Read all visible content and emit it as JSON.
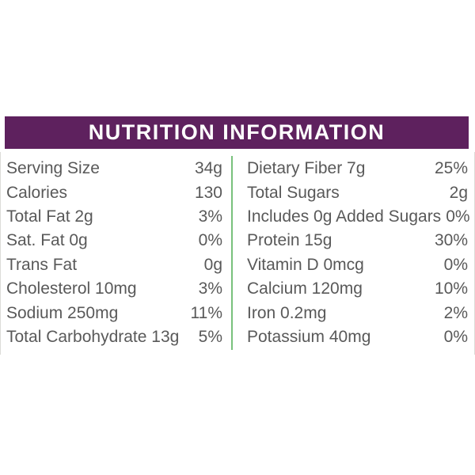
{
  "header": {
    "title": "NUTRITION INFORMATION"
  },
  "colors": {
    "header_bg": "#5e215e",
    "header_text": "#ffffff",
    "divider_green": "#79c17c",
    "row_text": "#595959"
  },
  "left_rows": [
    {
      "label": "Serving Size",
      "value": "34g"
    },
    {
      "label": "Calories",
      "value": "130"
    },
    {
      "label": "Total Fat 2g",
      "value": "3%"
    },
    {
      "label": "Sat. Fat 0g",
      "value": "0%"
    },
    {
      "label": "Trans Fat",
      "value": "0g"
    },
    {
      "label": "Cholesterol 10mg",
      "value": "3%"
    },
    {
      "label": "Sodium 250mg",
      "value": "11%"
    },
    {
      "label": "Total Carbohydrate 13g",
      "value": "5%"
    }
  ],
  "right_rows": [
    {
      "label": "Dietary Fiber 7g",
      "value": "25%"
    },
    {
      "label": "Total Sugars",
      "value": "2g"
    },
    {
      "label": "Includes 0g Added Sugars",
      "value": "0%"
    },
    {
      "label": "Protein 15g",
      "value": "30%"
    },
    {
      "label": "Vitamin D 0mcg",
      "value": "0%"
    },
    {
      "label": "Calcium 120mg",
      "value": "10%"
    },
    {
      "label": "Iron 0.2mg",
      "value": "2%"
    },
    {
      "label": "Potassium 40mg",
      "value": "0%"
    }
  ]
}
